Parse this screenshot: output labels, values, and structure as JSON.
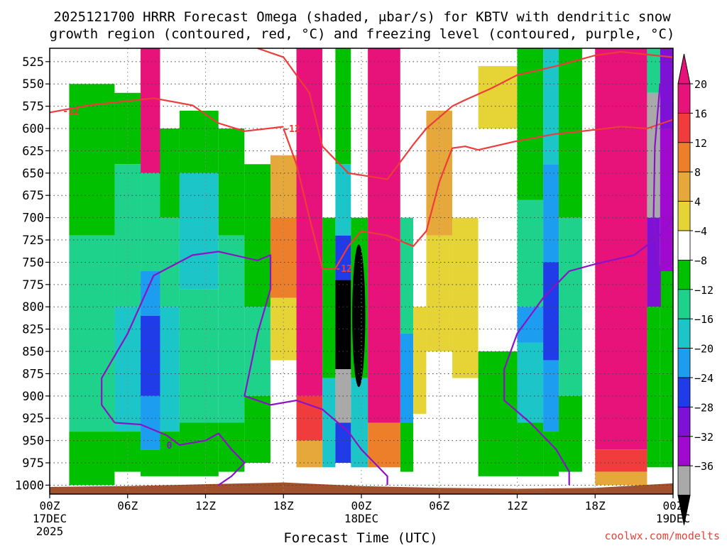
{
  "chart_data": {
    "type": "heatmap",
    "title_line1": "2025121700 HRRR Forecast Omega (shaded, μbar/s) for KBTV with dendritic snow",
    "title_line2": "growth region (contoured, red, °C) and freezing level (contoured, purple, °C)",
    "xlabel": "Forecast Time (UTC)",
    "credit": "coolwx.com/modelts",
    "x_range_hours": [
      0,
      48
    ],
    "y_range_hpa": [
      1010,
      510
    ],
    "x_ticks": [
      {
        "h": 0,
        "label": "00Z",
        "sub1": "17DEC",
        "sub2": "2025"
      },
      {
        "h": 6,
        "label": "06Z",
        "sub1": "",
        "sub2": ""
      },
      {
        "h": 12,
        "label": "12Z",
        "sub1": "",
        "sub2": ""
      },
      {
        "h": 18,
        "label": "18Z",
        "sub1": "",
        "sub2": ""
      },
      {
        "h": 24,
        "label": "00Z",
        "sub1": "18DEC",
        "sub2": ""
      },
      {
        "h": 30,
        "label": "06Z",
        "sub1": "",
        "sub2": ""
      },
      {
        "h": 36,
        "label": "12Z",
        "sub1": "",
        "sub2": ""
      },
      {
        "h": 42,
        "label": "18Z",
        "sub1": "",
        "sub2": ""
      },
      {
        "h": 48,
        "label": "00Z",
        "sub1": "19DEC",
        "sub2": ""
      }
    ],
    "y_ticks": [
      "525",
      "550",
      "575",
      "600",
      "625",
      "650",
      "675",
      "700",
      "725",
      "750",
      "775",
      "800",
      "825",
      "850",
      "875",
      "900",
      "925",
      "950",
      "975",
      "1000"
    ],
    "colorbar": {
      "labels": [
        "20",
        "16",
        "12",
        "8",
        "4",
        "−4",
        "−8",
        "−12",
        "−16",
        "−20",
        "−24",
        "−28",
        "−32",
        "−36"
      ],
      "colors": [
        "#e8137a",
        "#f03c3c",
        "#ee7f2a",
        "#e6a83a",
        "#e6d436",
        "#ffffff",
        "#00c000",
        "#1fd28c",
        "#1cc6c8",
        "#1c9df0",
        "#1f3ce8",
        "#7d12d6",
        "#a00ad0",
        "#a9a9a9"
      ],
      "top_color": "#e8137a",
      "bottom_color": "#000000"
    },
    "columns": [
      {
        "t0": 0,
        "t1": 1.5,
        "layers": [
          {
            "p0": 510,
            "p1": 1000,
            "c": 5
          }
        ]
      },
      {
        "t0": 1.5,
        "t1": 5,
        "layers": [
          {
            "p0": 510,
            "p1": 550,
            "c": 5
          },
          {
            "p0": 550,
            "p1": 720,
            "c": 6
          },
          {
            "p0": 720,
            "p1": 940,
            "c": 7
          },
          {
            "p0": 940,
            "p1": 1000,
            "c": 6
          }
        ]
      },
      {
        "t0": 5,
        "t1": 7,
        "layers": [
          {
            "p0": 510,
            "p1": 560,
            "c": 5
          },
          {
            "p0": 560,
            "p1": 640,
            "c": 6
          },
          {
            "p0": 640,
            "p1": 800,
            "c": 7
          },
          {
            "p0": 800,
            "p1": 940,
            "c": 8
          },
          {
            "p0": 940,
            "p1": 985,
            "c": 6
          }
        ]
      },
      {
        "t0": 7,
        "t1": 8.5,
        "layers": [
          {
            "p0": 510,
            "p1": 650,
            "c": 0
          },
          {
            "p0": 650,
            "p1": 760,
            "c": 7
          },
          {
            "p0": 760,
            "p1": 810,
            "c": 9
          },
          {
            "p0": 810,
            "p1": 900,
            "c": 10
          },
          {
            "p0": 900,
            "p1": 960,
            "c": 9
          },
          {
            "p0": 960,
            "p1": 990,
            "c": 6
          }
        ]
      },
      {
        "t0": 8.5,
        "t1": 10,
        "layers": [
          {
            "p0": 510,
            "p1": 600,
            "c": 5
          },
          {
            "p0": 600,
            "p1": 700,
            "c": 6
          },
          {
            "p0": 700,
            "p1": 800,
            "c": 7
          },
          {
            "p0": 800,
            "p1": 940,
            "c": 8
          },
          {
            "p0": 940,
            "p1": 990,
            "c": 6
          }
        ]
      },
      {
        "t0": 10,
        "t1": 13,
        "layers": [
          {
            "p0": 510,
            "p1": 580,
            "c": 5
          },
          {
            "p0": 580,
            "p1": 650,
            "c": 6
          },
          {
            "p0": 650,
            "p1": 780,
            "c": 8
          },
          {
            "p0": 780,
            "p1": 930,
            "c": 7
          },
          {
            "p0": 930,
            "p1": 990,
            "c": 6
          }
        ]
      },
      {
        "t0": 13,
        "t1": 15,
        "layers": [
          {
            "p0": 510,
            "p1": 600,
            "c": 5
          },
          {
            "p0": 600,
            "p1": 720,
            "c": 6
          },
          {
            "p0": 720,
            "p1": 930,
            "c": 7
          },
          {
            "p0": 930,
            "p1": 985,
            "c": 6
          }
        ]
      },
      {
        "t0": 15,
        "t1": 17,
        "layers": [
          {
            "p0": 510,
            "p1": 640,
            "c": 5
          },
          {
            "p0": 640,
            "p1": 800,
            "c": 6
          },
          {
            "p0": 800,
            "p1": 900,
            "c": 7
          },
          {
            "p0": 900,
            "p1": 975,
            "c": 6
          }
        ]
      },
      {
        "t0": 17,
        "t1": 19,
        "layers": [
          {
            "p0": 510,
            "p1": 630,
            "c": 5
          },
          {
            "p0": 630,
            "p1": 700,
            "c": 3
          },
          {
            "p0": 700,
            "p1": 790,
            "c": 2
          },
          {
            "p0": 790,
            "p1": 860,
            "c": 4
          },
          {
            "p0": 860,
            "p1": 975,
            "c": 5
          }
        ]
      },
      {
        "t0": 19,
        "t1": 21,
        "layers": [
          {
            "p0": 510,
            "p1": 900,
            "c": 0
          },
          {
            "p0": 900,
            "p1": 950,
            "c": 1
          },
          {
            "p0": 950,
            "p1": 980,
            "c": 3
          }
        ]
      },
      {
        "t0": 21,
        "t1": 22,
        "layers": [
          {
            "p0": 510,
            "p1": 700,
            "c": 5
          },
          {
            "p0": 700,
            "p1": 880,
            "c": 6
          },
          {
            "p0": 880,
            "p1": 980,
            "c": 8
          }
        ]
      },
      {
        "t0": 22,
        "t1": 23.2,
        "layers": [
          {
            "p0": 510,
            "p1": 640,
            "c": 6
          },
          {
            "p0": 640,
            "p1": 720,
            "c": 8
          },
          {
            "p0": 720,
            "p1": 770,
            "c": 10
          },
          {
            "p0": 770,
            "p1": 870,
            "c": 14
          },
          {
            "p0": 870,
            "p1": 930,
            "c": 13
          },
          {
            "p0": 930,
            "p1": 975,
            "c": 10
          }
        ]
      },
      {
        "t0": 23.2,
        "t1": 24.5,
        "layers": [
          {
            "p0": 510,
            "p1": 700,
            "c": 5
          },
          {
            "p0": 700,
            "p1": 880,
            "c": 6
          },
          {
            "p0": 880,
            "p1": 980,
            "c": 8
          }
        ]
      },
      {
        "t0": 24.5,
        "t1": 27,
        "layers": [
          {
            "p0": 510,
            "p1": 930,
            "c": 0
          },
          {
            "p0": 930,
            "p1": 980,
            "c": 2
          }
        ]
      },
      {
        "t0": 27,
        "t1": 28,
        "layers": [
          {
            "p0": 510,
            "p1": 700,
            "c": 5
          },
          {
            "p0": 700,
            "p1": 830,
            "c": 7
          },
          {
            "p0": 830,
            "p1": 930,
            "c": 9
          },
          {
            "p0": 930,
            "p1": 985,
            "c": 6
          }
        ]
      },
      {
        "t0": 28,
        "t1": 29,
        "layers": [
          {
            "p0": 510,
            "p1": 800,
            "c": 5
          },
          {
            "p0": 800,
            "p1": 920,
            "c": 4
          },
          {
            "p0": 920,
            "p1": 960,
            "c": 5
          }
        ]
      },
      {
        "t0": 29,
        "t1": 31,
        "layers": [
          {
            "p0": 510,
            "p1": 580,
            "c": 5
          },
          {
            "p0": 580,
            "p1": 720,
            "c": 3
          },
          {
            "p0": 720,
            "p1": 850,
            "c": 4
          },
          {
            "p0": 850,
            "p1": 1000,
            "c": 5
          }
        ]
      },
      {
        "t0": 31,
        "t1": 33,
        "layers": [
          {
            "p0": 510,
            "p1": 700,
            "c": 5
          },
          {
            "p0": 700,
            "p1": 880,
            "c": 4
          },
          {
            "p0": 880,
            "p1": 1000,
            "c": 5
          }
        ]
      },
      {
        "t0": 33,
        "t1": 36,
        "layers": [
          {
            "p0": 510,
            "p1": 530,
            "c": 5
          },
          {
            "p0": 530,
            "p1": 600,
            "c": 4
          },
          {
            "p0": 600,
            "p1": 850,
            "c": 5
          },
          {
            "p0": 850,
            "p1": 990,
            "c": 6
          }
        ]
      },
      {
        "t0": 36,
        "t1": 38,
        "layers": [
          {
            "p0": 510,
            "p1": 680,
            "c": 6
          },
          {
            "p0": 680,
            "p1": 800,
            "c": 7
          },
          {
            "p0": 800,
            "p1": 840,
            "c": 9
          },
          {
            "p0": 840,
            "p1": 930,
            "c": 8
          },
          {
            "p0": 930,
            "p1": 990,
            "c": 6
          }
        ]
      },
      {
        "t0": 38,
        "t1": 39.2,
        "layers": [
          {
            "p0": 510,
            "p1": 640,
            "c": 8
          },
          {
            "p0": 640,
            "p1": 750,
            "c": 9
          },
          {
            "p0": 750,
            "p1": 860,
            "c": 10
          },
          {
            "p0": 860,
            "p1": 940,
            "c": 9
          },
          {
            "p0": 940,
            "p1": 990,
            "c": 6
          }
        ]
      },
      {
        "t0": 39.2,
        "t1": 41,
        "layers": [
          {
            "p0": 510,
            "p1": 700,
            "c": 6
          },
          {
            "p0": 700,
            "p1": 900,
            "c": 7
          },
          {
            "p0": 900,
            "p1": 985,
            "c": 6
          }
        ]
      },
      {
        "t0": 41,
        "t1": 42,
        "layers": [
          {
            "p0": 510,
            "p1": 1000,
            "c": 5
          }
        ]
      },
      {
        "t0": 42,
        "t1": 46,
        "layers": [
          {
            "p0": 510,
            "p1": 960,
            "c": 0
          },
          {
            "p0": 960,
            "p1": 985,
            "c": 1
          },
          {
            "p0": 985,
            "p1": 1000,
            "c": 3
          }
        ]
      },
      {
        "t0": 46,
        "t1": 47,
        "layers": [
          {
            "p0": 510,
            "p1": 560,
            "c": 7
          },
          {
            "p0": 560,
            "p1": 700,
            "c": 13
          },
          {
            "p0": 700,
            "p1": 800,
            "c": 11
          },
          {
            "p0": 800,
            "p1": 980,
            "c": 6
          }
        ]
      },
      {
        "t0": 47,
        "t1": 48,
        "layers": [
          {
            "p0": 510,
            "p1": 600,
            "c": 11
          },
          {
            "p0": 600,
            "p1": 760,
            "c": 12
          },
          {
            "p0": 760,
            "p1": 980,
            "c": 6
          }
        ]
      }
    ],
    "black_core": {
      "t": 23.8,
      "dt": 0.5,
      "p0": 730,
      "p1": 890
    },
    "red_dgz_contours": [
      {
        "label": "-12",
        "label_at": [
          1,
          580
        ],
        "points": [
          [
            0,
            582
          ],
          [
            3,
            574
          ],
          [
            8,
            566
          ],
          [
            11,
            574
          ],
          [
            13,
            594
          ],
          [
            15,
            603
          ],
          [
            18,
            598
          ]
        ]
      },
      {
        "label": "-12",
        "label_at": [
          18,
          600
        ],
        "points": [
          [
            16,
            510
          ],
          [
            18,
            520
          ],
          [
            20,
            560
          ],
          [
            21,
            620
          ],
          [
            23,
            650
          ],
          [
            26,
            657
          ],
          [
            28,
            618
          ],
          [
            29,
            600
          ],
          [
            31,
            575
          ],
          [
            32,
            568
          ],
          [
            34,
            555
          ],
          [
            36,
            540
          ],
          [
            39,
            530
          ],
          [
            42,
            518
          ],
          [
            44,
            514
          ],
          [
            48,
            520
          ]
        ]
      },
      {
        "label": "-12",
        "label_at": [
          22,
          757
        ],
        "points": [
          [
            18,
            600
          ],
          [
            19,
            640
          ],
          [
            20,
            700
          ],
          [
            21,
            757
          ],
          [
            22,
            757
          ],
          [
            23,
            732
          ],
          [
            24,
            715
          ],
          [
            26,
            720
          ],
          [
            28,
            732
          ],
          [
            29,
            715
          ],
          [
            30,
            660
          ],
          [
            31,
            622
          ],
          [
            32,
            620
          ],
          [
            33,
            624
          ],
          [
            36,
            614
          ],
          [
            39,
            606
          ],
          [
            41,
            603
          ],
          [
            44,
            598
          ],
          [
            46,
            600
          ],
          [
            48,
            590
          ]
        ]
      }
    ],
    "purple_freezing_contours": [
      {
        "label": "0",
        "label_at": [
          9,
          955
        ],
        "points": [
          [
            5,
            930
          ],
          [
            4,
            910
          ],
          [
            4,
            880
          ],
          [
            6,
            830
          ],
          [
            8,
            765
          ],
          [
            11,
            742
          ],
          [
            13,
            738
          ],
          [
            16,
            748
          ],
          [
            17,
            742
          ],
          [
            17,
            780
          ],
          [
            16,
            830
          ],
          [
            15,
            900
          ],
          [
            17,
            910
          ],
          [
            19,
            905
          ],
          [
            21,
            915
          ],
          [
            23,
            940
          ],
          [
            24,
            960
          ],
          [
            25,
            975
          ],
          [
            26,
            990
          ],
          [
            26,
            1000
          ]
        ]
      },
      {
        "label": "",
        "label_at": [
          0,
          0
        ],
        "points": [
          [
            5,
            930
          ],
          [
            7,
            932
          ],
          [
            9,
            944
          ],
          [
            10,
            955
          ],
          [
            12,
            950
          ],
          [
            13,
            942
          ],
          [
            14,
            960
          ],
          [
            15,
            975
          ],
          [
            14,
            990
          ],
          [
            13,
            1000
          ]
        ]
      },
      {
        "label": "",
        "label_at": [
          0,
          0
        ],
        "points": [
          [
            40,
            1000
          ],
          [
            40,
            985
          ],
          [
            39,
            960
          ],
          [
            37,
            930
          ],
          [
            35,
            905
          ],
          [
            35,
            870
          ],
          [
            36,
            830
          ],
          [
            38,
            790
          ],
          [
            40,
            760
          ],
          [
            42,
            752
          ],
          [
            45,
            742
          ],
          [
            47,
            720
          ],
          [
            48,
            700
          ]
        ]
      },
      {
        "label": "",
        "label_at": [
          0,
          0
        ],
        "points": [
          [
            47,
            550
          ],
          [
            46.6,
            620
          ],
          [
            46.5,
            700
          ],
          [
            47,
            760
          ],
          [
            47,
            800
          ]
        ]
      }
    ],
    "terrain_profile": [
      [
        0,
        1002
      ],
      [
        6,
        1001
      ],
      [
        12,
        999
      ],
      [
        18,
        997
      ],
      [
        24,
        1001
      ],
      [
        30,
        1003
      ],
      [
        36,
        1004
      ],
      [
        42,
        1003
      ],
      [
        48,
        998
      ]
    ]
  }
}
